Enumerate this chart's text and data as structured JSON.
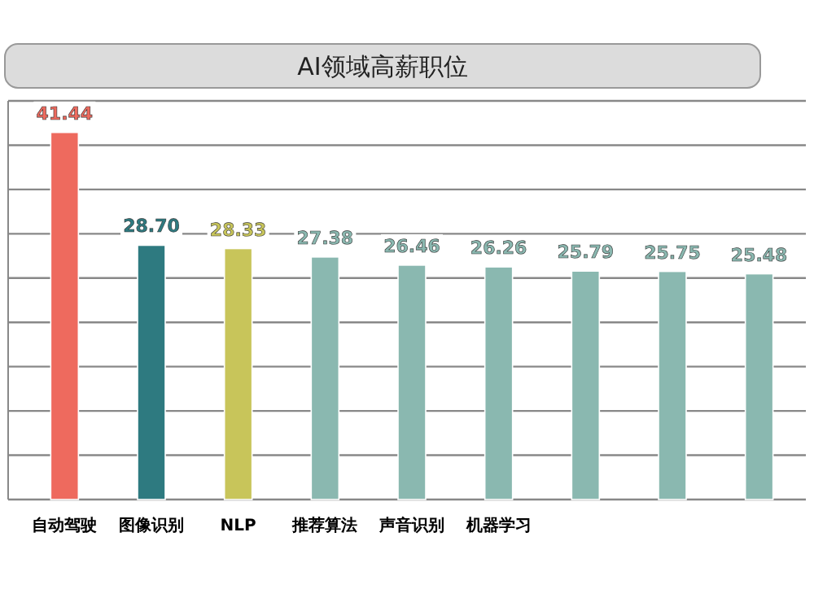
{
  "chart_data": {
    "type": "bar",
    "title": "AI领域高薪职位",
    "categories": [
      "自动驾驶",
      "图像识别",
      "NLP",
      "推荐算法",
      "声音识别",
      "机器学习",
      null,
      null,
      null
    ],
    "values": [
      41.44,
      28.7,
      28.33,
      27.38,
      26.46,
      26.26,
      25.79,
      25.75,
      25.48
    ],
    "colors": [
      "#ee6a5e",
      "#2e7a80",
      "#c8c55a",
      "#8ab8b0",
      "#8ab8b0",
      "#8ab8b0",
      "#8ab8b0",
      "#8ab8b0",
      "#8ab8b0"
    ],
    "value_labels": [
      "41.44",
      "28.70",
      "28.33",
      "27.38",
      "26.46",
      "26.26",
      "25.79",
      "25.75",
      "25.48"
    ],
    "ylim": [
      0,
      45
    ],
    "yticks": [
      {
        "value": 0,
        "label": null
      },
      {
        "value": 5,
        "label": null
      },
      {
        "value": 10,
        "label": null
      },
      {
        "value": 15,
        "label": null
      },
      {
        "value": 20,
        "label": null
      },
      {
        "value": 25,
        "label": null
      },
      {
        "value": 30,
        "label": null
      },
      {
        "value": 35,
        "label": null
      },
      {
        "value": 40,
        "label": null
      },
      {
        "value": 45,
        "label": null
      }
    ],
    "grid": "y"
  }
}
